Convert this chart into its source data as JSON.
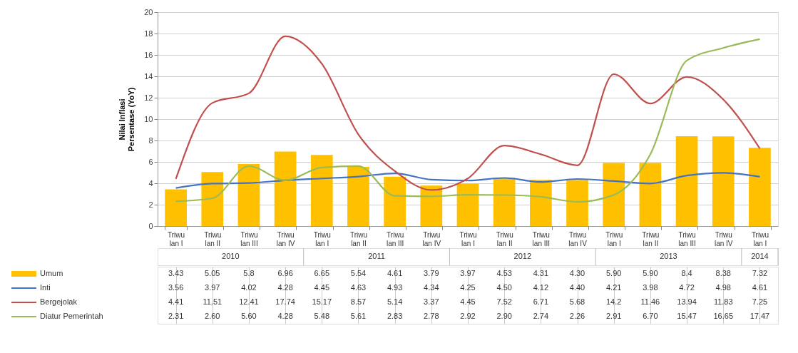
{
  "chart_data": {
    "type": "bar",
    "ylabel": "Nilai Inflasi\nPersentase (YoY)",
    "categories": [
      "Triwulan I",
      "Triwulan II",
      "Triwulan III",
      "Triwulan IV",
      "Triwulan I",
      "Triwulan II",
      "Triwulan III",
      "Triwulan IV",
      "Triwulan I",
      "Triwulan II",
      "Triwulan III",
      "Triwulan IV",
      "Triwulan I",
      "Triwulan II",
      "Triwulan III",
      "Triwulan IV",
      "Triwulan I"
    ],
    "annotations": [
      "2010",
      "2011",
      "2012",
      "2013",
      "2014"
    ],
    "ylim": [
      0,
      20
    ],
    "yticks": [
      0,
      2,
      4,
      6,
      8,
      10,
      12,
      14,
      16,
      18,
      20
    ],
    "grid": "y",
    "legend": "bottom left",
    "series": [
      {
        "name": "Umum",
        "color": "#ffc000",
        "values": [
          3.43,
          5.05,
          5.8,
          6.96,
          6.65,
          5.54,
          4.61,
          3.79,
          3.97,
          4.53,
          4.31,
          4.3,
          5.9,
          5.9,
          8.4,
          8.38,
          7.32
        ],
        "value_labels": [
          "3.43",
          "5.05",
          "5.8",
          "6.96",
          "6.65",
          "5.54",
          "4.61",
          "3.79",
          "3.97",
          "4.53",
          "4.31",
          "4.30",
          "5.90",
          "5.90",
          "8.4",
          "8.38",
          "7.32"
        ]
      },
      {
        "name": "Inti",
        "type": "line",
        "color": "#4472c4",
        "values": [
          3.56,
          3.97,
          4.02,
          4.28,
          4.45,
          4.63,
          4.93,
          4.34,
          4.25,
          4.5,
          4.12,
          4.4,
          4.21,
          3.98,
          4.72,
          4.98,
          4.61
        ],
        "value_labels": [
          "3.56",
          "3.97",
          "4.02",
          "4.28",
          "4.45",
          "4.63",
          "4.93",
          "4.34",
          "4.25",
          "4.50",
          "4.12",
          "4.40",
          "4.21",
          "3.98",
          "4.72",
          "4.98",
          "4.61"
        ]
      },
      {
        "name": "Bergejolak",
        "type": "line",
        "color": "#c0504d",
        "values": [
          4.41,
          11.51,
          12.41,
          17.74,
          15.17,
          8.57,
          5.14,
          3.37,
          4.45,
          7.52,
          6.71,
          5.68,
          14.2,
          11.46,
          13.94,
          11.83,
          7.25
        ],
        "value_labels": [
          "4.41",
          "11.51",
          "12.41",
          "17.74",
          "15.17",
          "8.57",
          "5.14",
          "3.37",
          "4.45",
          "7.52",
          "6.71",
          "5.68",
          "14.2",
          "11.46",
          "13.94",
          "11.83",
          "7.25"
        ]
      },
      {
        "name": "Diatur Pemerintah",
        "type": "line",
        "color": "#9bbb59",
        "values": [
          2.31,
          2.6,
          5.6,
          4.28,
          5.48,
          5.61,
          2.83,
          2.78,
          2.92,
          2.9,
          2.74,
          2.26,
          2.91,
          6.7,
          15.47,
          16.65,
          17.47
        ],
        "value_labels": [
          "2.31",
          "2.60",
          "5.60",
          "4.28",
          "5.48",
          "5.61",
          "2.83",
          "2.78",
          "2.92",
          "2.90",
          "2.74",
          "2.26",
          "2.91",
          "6.70",
          "15.47",
          "16.65",
          "17.47"
        ]
      }
    ]
  }
}
